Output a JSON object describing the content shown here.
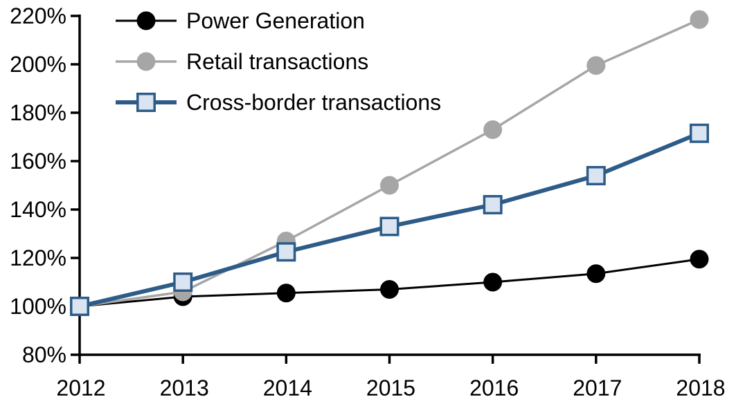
{
  "chart_data": {
    "type": "line",
    "title": "",
    "xlabel": "",
    "ylabel": "",
    "x_labels": [
      "2012",
      "2013",
      "2014",
      "2015",
      "2016",
      "2017",
      "2018"
    ],
    "series": [
      {
        "name": "Power Generation",
        "values": [
          100,
          104,
          105.5,
          107,
          110,
          113.5,
          119.5
        ],
        "color": "#000000",
        "marker": "circle",
        "marker_fill": "#000000",
        "line_width": 3
      },
      {
        "name": "Retail transactions",
        "values": [
          100,
          106,
          127,
          150,
          173,
          199.5,
          218.5
        ],
        "color": "#A6A6A6",
        "marker": "circle",
        "marker_fill": "#A6A6A6",
        "line_width": 3.5
      },
      {
        "name": "Cross-border transactions",
        "values": [
          100,
          110,
          122.5,
          133,
          142,
          154,
          171.5
        ],
        "color": "#2D5C88",
        "marker": "square",
        "marker_fill": "#DBE5F1",
        "marker_border": "#2D5C88",
        "line_width": 6
      }
    ],
    "ylim": [
      80,
      220
    ],
    "ytick_step": 20,
    "ytick_suffix": "%",
    "legend_position": "top-left",
    "grid": false,
    "axis_color": "#000000",
    "background": "#FFFFFF"
  }
}
